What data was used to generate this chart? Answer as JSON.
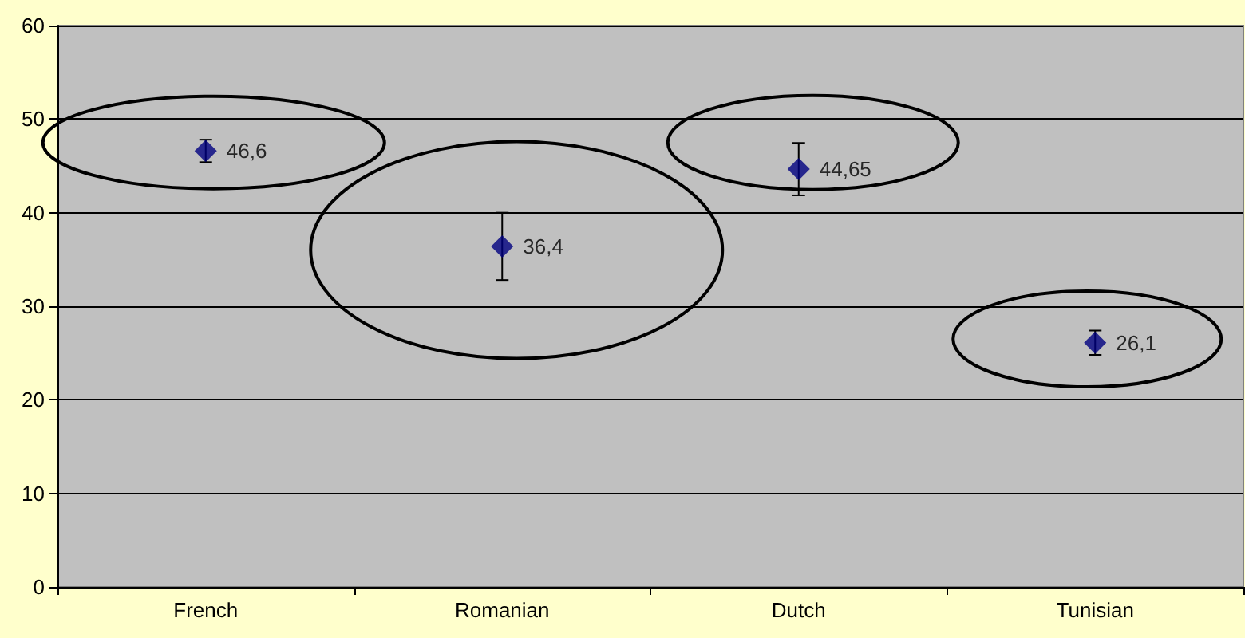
{
  "chart_data": {
    "type": "scatter",
    "categories": [
      "French",
      "Romanian",
      "Dutch",
      "Tunisian"
    ],
    "series": [
      {
        "color": "#000080",
        "values": [
          46.6,
          36.4,
          44.65,
          26.1
        ],
        "errors": [
          1.2,
          3.6,
          2.8,
          1.3
        ],
        "value_labels": [
          "46,6",
          "36,4",
          "44,65",
          "26,1"
        ]
      }
    ],
    "marker": "diamond",
    "ylim": [
      0,
      60
    ],
    "yticks": [
      0,
      10,
      20,
      30,
      40,
      50,
      60
    ],
    "grid": "y"
  }
}
